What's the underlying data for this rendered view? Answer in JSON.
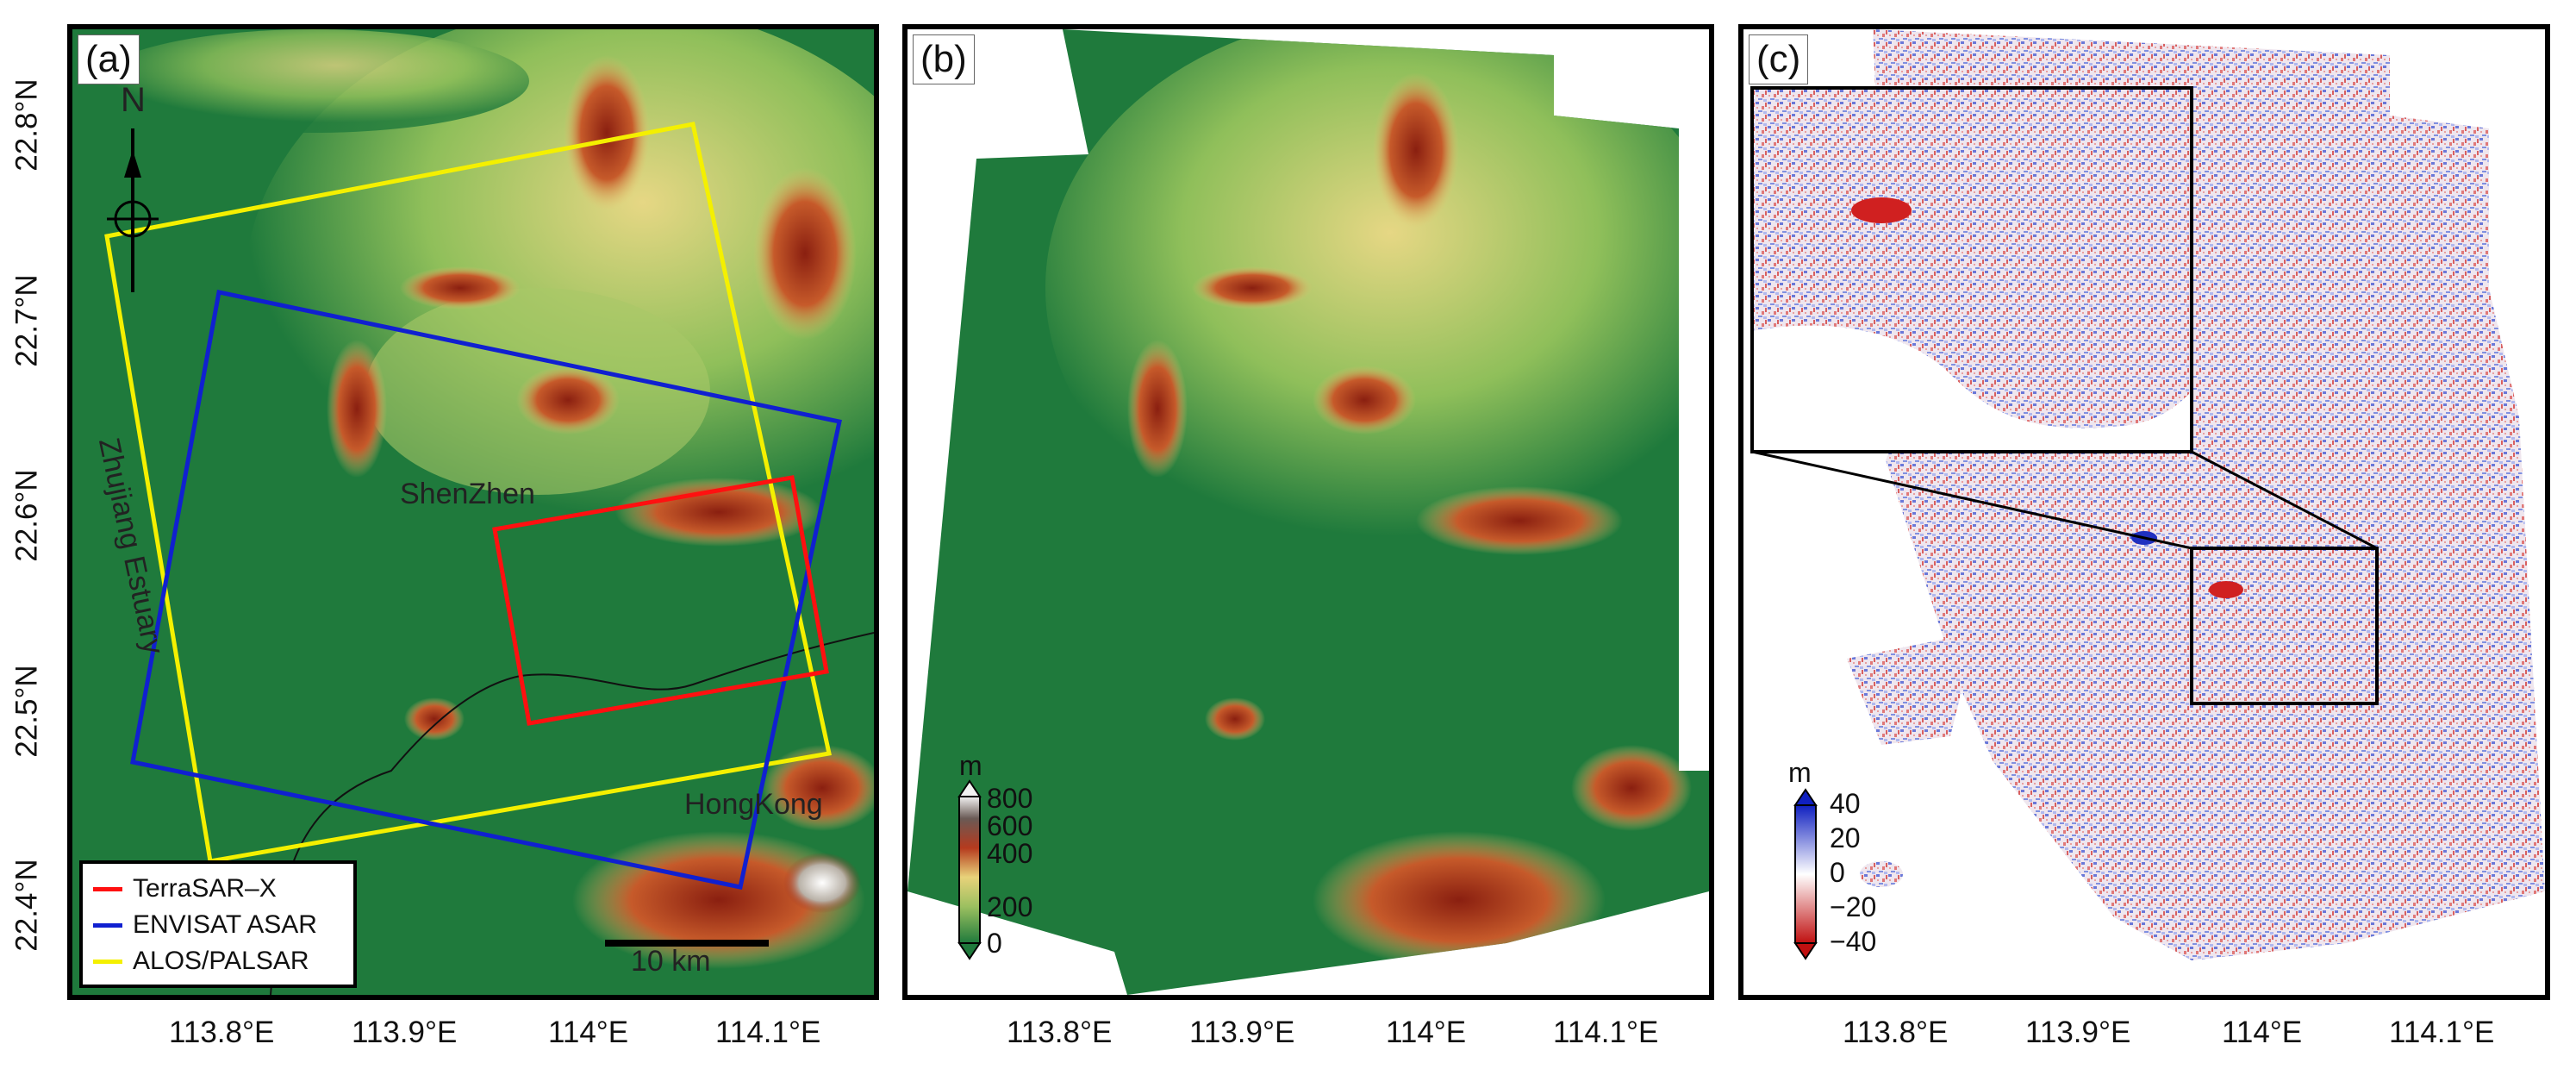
{
  "panels": {
    "a": {
      "label": "(a)"
    },
    "b": {
      "label": "(b)"
    },
    "c": {
      "label": "(c)"
    }
  },
  "x_ticks": [
    "113.8°E",
    "113.9°E",
    "114°E",
    "114.1°E"
  ],
  "y_ticks": [
    "22.8°N",
    "22.7°N",
    "22.6°N",
    "22.5°N",
    "22.4°N"
  ],
  "map_labels": {
    "north": "N",
    "estuary": "Zhujiang Estuary",
    "shenzhen": "ShenZhen",
    "hongkong": "HongKong",
    "scale": "10 km"
  },
  "legend": {
    "items": [
      {
        "label": "TerraSAR–X",
        "color": "#ff1010"
      },
      {
        "label": "ENVISAT ASAR",
        "color": "#1020d0"
      },
      {
        "label": "ALOS/PALSAR",
        "color": "#f4f000"
      }
    ]
  },
  "colorbar_dem": {
    "unit": "m",
    "ticks": [
      "800",
      "600",
      "400",
      "200",
      "0"
    ]
  },
  "colorbar_diff": {
    "unit": "m",
    "ticks": [
      "40",
      "20",
      "0",
      "−20",
      "−40"
    ]
  },
  "colors": {
    "lowland": "#1f7a3c",
    "midland": "#9cc060",
    "upland": "#e8d27a",
    "ridge": "#b53a1e",
    "peak": "#f2f2f2",
    "diff_pos": "#2030c0",
    "diff_neg": "#d02020"
  }
}
